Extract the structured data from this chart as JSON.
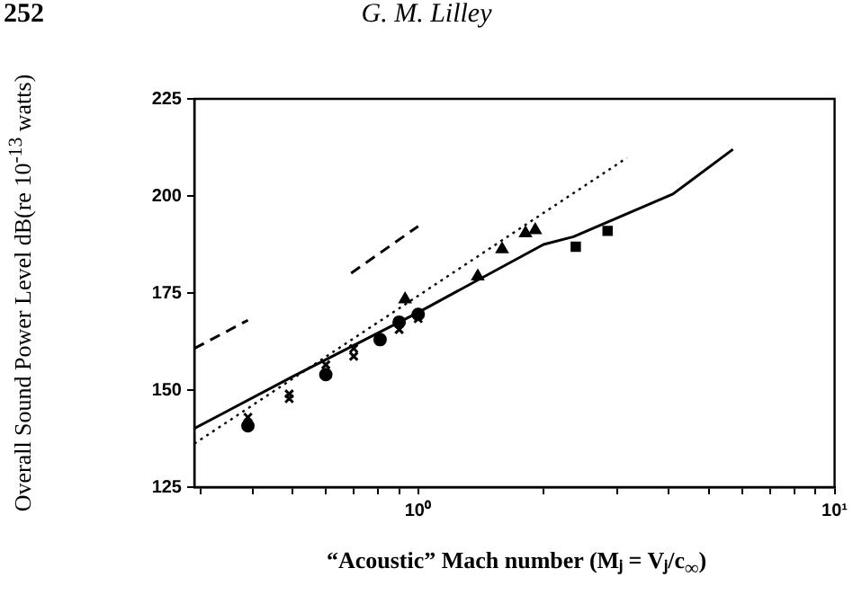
{
  "chart_data": {
    "type": "scatter",
    "xlabel": "“Acoustic” Mach number (Mⱼ = Vⱼ/c$_{∞}$)",
    "ylabel": "Overall Sound Power Level dB(re 10$^{-13}$ watts)",
    "annotations": [
      "252",
      "G. M. Lilley"
    ],
    "log": "x",
    "xlim": [
      0.29,
      10
    ],
    "ylim": [
      125,
      225
    ],
    "xticks": [
      {
        "value": 0.3,
        "label": null
      },
      {
        "value": 0.4,
        "label": null
      },
      {
        "value": 0.5,
        "label": null
      },
      {
        "value": 0.6,
        "label": null
      },
      {
        "value": 0.7,
        "label": null
      },
      {
        "value": 0.8,
        "label": null
      },
      {
        "value": 0.9,
        "label": null
      },
      {
        "value": 1,
        "label": "10⁰"
      },
      {
        "value": 2,
        "label": null
      },
      {
        "value": 3,
        "label": null
      },
      {
        "value": 4,
        "label": null
      },
      {
        "value": 5,
        "label": null
      },
      {
        "value": 6,
        "label": null
      },
      {
        "value": 7,
        "label": null
      },
      {
        "value": 8,
        "label": null
      },
      {
        "value": 9,
        "label": null
      },
      {
        "value": 10,
        "label": "10¹"
      }
    ],
    "yticks": [
      125,
      150,
      175,
      200,
      225
    ],
    "grid": false,
    "legend": false,
    "series": [
      {
        "type": "line",
        "color": "#000000",
        "marker": "none",
        "line_style": "solid",
        "x": [
          0.29,
          0.5,
          1,
          2,
          2.36,
          4.09,
          5.7
        ],
        "values": [
          140.1,
          153.5,
          170,
          187.5,
          189.5,
          200.5,
          212
        ]
      },
      {
        "type": "line",
        "color": "#000000",
        "marker": "none",
        "line_style": "dotted",
        "x": [
          0.29,
          3.17
        ],
        "values": [
          136.2,
          209.8
        ]
      },
      {
        "type": "line",
        "color": "#000000",
        "marker": "none",
        "line_style": "dashed",
        "x": [
          0.29,
          0.39
        ],
        "values": [
          160.7,
          168
        ]
      },
      {
        "type": "line",
        "color": "#000000",
        "marker": "none",
        "line_style": "dashed",
        "x": [
          0.69,
          1
        ],
        "values": [
          180.1,
          192.2
        ]
      },
      {
        "type": "scatter",
        "color": "#000000",
        "marker": "cross",
        "x": [
          0.39,
          0.49,
          0.6,
          0.7,
          0.9,
          1,
          0.49,
          0.7
        ],
        "values": [
          143,
          149,
          156.5,
          160.7,
          165.6,
          168.4,
          147.8,
          158.7
        ]
      },
      {
        "type": "scatter",
        "color": "#000000",
        "marker": "circle",
        "x": [
          0.39,
          0.6,
          0.81,
          0.9,
          1
        ],
        "values": [
          140.8,
          154,
          163,
          167.5,
          169.5
        ]
      },
      {
        "type": "scatter",
        "color": "#000000",
        "marker": "triangle",
        "x": [
          0.93,
          1.39,
          1.59,
          1.81,
          1.91
        ],
        "values": [
          173.4,
          179.3,
          186.3,
          190.4,
          191.2
        ]
      },
      {
        "type": "scatter",
        "color": "#000000",
        "marker": "square",
        "x": [
          2.39,
          2.85
        ],
        "values": [
          186.9,
          191
        ]
      }
    ]
  }
}
